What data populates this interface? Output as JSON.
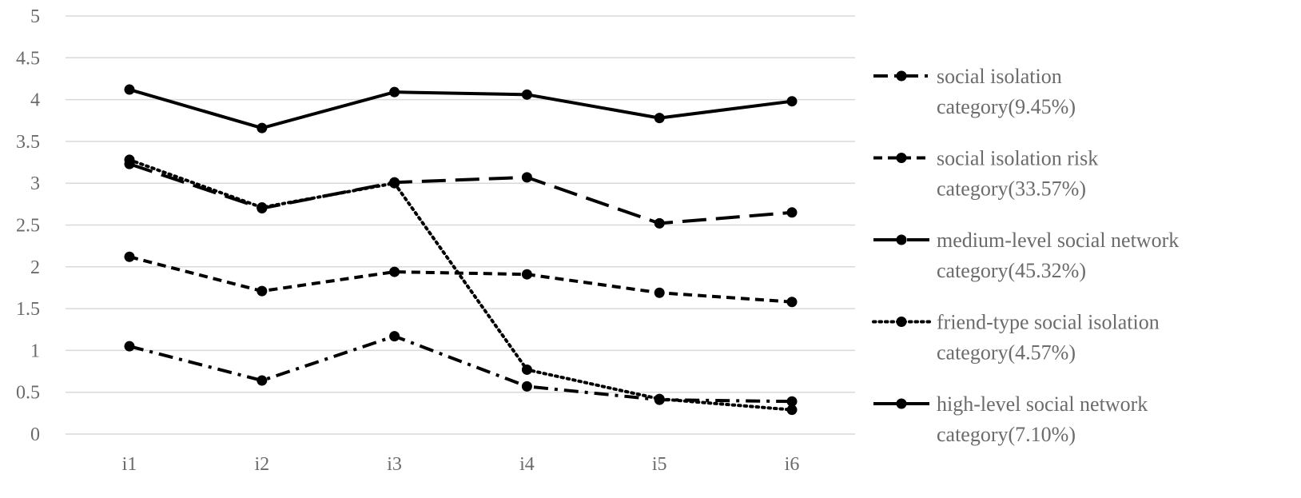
{
  "chart_data": {
    "type": "line",
    "categories": [
      "i1",
      "i2",
      "i3",
      "i4",
      "i5",
      "i6"
    ],
    "ylim": [
      0,
      5
    ],
    "yticks": [
      "0",
      "0.5",
      "1",
      "1.5",
      "2",
      "2.5",
      "3",
      "3.5",
      "4",
      "4.5",
      "5"
    ],
    "grid": true,
    "legend_position": "right",
    "series": [
      {
        "name": "social isolation category(9.45%)",
        "name_lines": [
          "social isolation",
          "category(9.45%)"
        ],
        "dash": "dash-dot",
        "values": [
          1.05,
          0.64,
          1.17,
          0.57,
          0.41,
          0.39
        ]
      },
      {
        "name": "social isolation risk category(33.57%)",
        "name_lines": [
          "social isolation risk",
          "category(33.57%)"
        ],
        "dash": "short-dash",
        "values": [
          2.12,
          1.71,
          1.94,
          1.91,
          1.69,
          1.58
        ]
      },
      {
        "name": "medium-level social network category(45.32%)",
        "name_lines": [
          "medium-level social network",
          "category(45.32%)"
        ],
        "dash": "long-dash",
        "values": [
          3.23,
          2.7,
          3.01,
          3.07,
          2.52,
          2.65
        ]
      },
      {
        "name": "friend-type social isolation category(4.57%)",
        "name_lines": [
          "friend-type social isolation",
          "category(4.57%)"
        ],
        "dash": "dotted",
        "values": [
          3.28,
          2.71,
          3.0,
          0.77,
          0.42,
          0.29
        ]
      },
      {
        "name": "high-level social network category(7.10%)",
        "name_lines": [
          "high-level social network",
          "category(7.10%)"
        ],
        "dash": "solid",
        "values": [
          4.12,
          3.66,
          4.09,
          4.06,
          3.78,
          3.98
        ]
      }
    ]
  },
  "colors": {
    "line": "#000000",
    "text": "#6b6b6b",
    "grid": "#d9d9d9"
  }
}
